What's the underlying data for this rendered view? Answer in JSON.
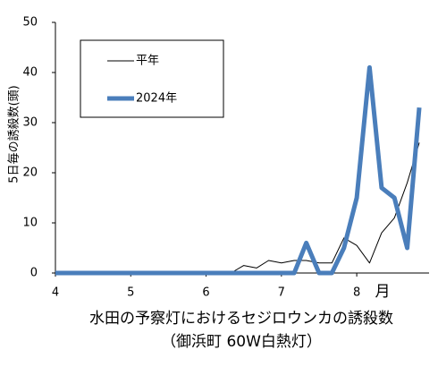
{
  "chart_data": {
    "type": "line",
    "title": "水田の予察灯におけるセジロウンカの誘殺数",
    "subtitle": "（御浜町 60W白熱灯）",
    "y_label": "5日毎の誘殺数(頭)",
    "x_unit": "月",
    "x": [
      4,
      6.33,
      6.5,
      6.67,
      6.83,
      7.0,
      7.17,
      7.33,
      7.5,
      7.67,
      7.83,
      8.0,
      8.17,
      8.33,
      8.5,
      8.67,
      8.83
    ],
    "series": [
      {
        "name": "平年",
        "color": "#000000",
        "width": 1,
        "values": [
          0,
          0,
          1.5,
          1,
          2.5,
          2,
          2.5,
          2.5,
          2,
          2,
          7,
          5.5,
          2,
          8,
          11,
          18,
          26
        ]
      },
      {
        "name": "2024年",
        "color": "#4a7ebb",
        "width": 5,
        "values": [
          0,
          0,
          0,
          0,
          0,
          0,
          0,
          6,
          0,
          0,
          5,
          15,
          41,
          17,
          15,
          5,
          33
        ]
      }
    ],
    "xlim": [
      4,
      8.96
    ],
    "xticks": [
      4,
      5,
      6,
      7,
      8
    ],
    "ylim": [
      0,
      50
    ],
    "yticks": [
      0,
      10,
      20,
      30,
      40,
      50
    ],
    "legend": "top-left"
  }
}
